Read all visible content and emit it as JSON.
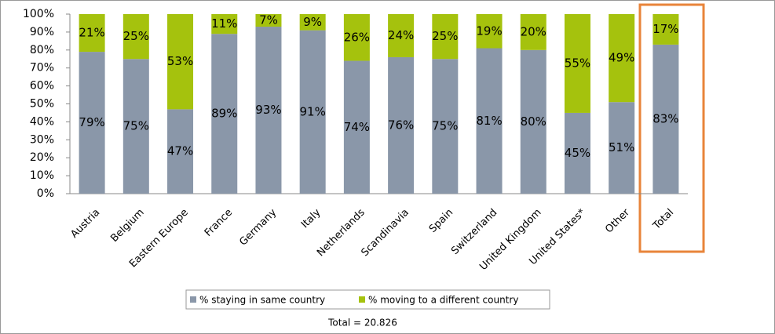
{
  "chart_data": {
    "type": "stacked-bar",
    "categories": [
      "Austria",
      "Belgium",
      "Eastern Europe",
      "France",
      "Germany",
      "Italy",
      "Netherlands",
      "Scandinavia",
      "Spain",
      "Switzerland",
      "United Kingdom",
      "United States*",
      "Other",
      "Total"
    ],
    "series": [
      {
        "name": "% staying in same country",
        "color": "#8a97a9",
        "values": [
          79,
          75,
          47,
          89,
          93,
          91,
          74,
          76,
          75,
          81,
          80,
          45,
          51,
          83
        ],
        "value_labels": [
          "79%",
          "75%",
          "47%",
          "89%",
          "93%",
          "91%",
          "74%",
          "76%",
          "75%",
          "81%",
          "80%",
          "45%",
          "51%",
          "83%"
        ]
      },
      {
        "name": "% moving to a different country",
        "color": "#a5c20d",
        "values": [
          21,
          25,
          53,
          11,
          7,
          9,
          26,
          24,
          25,
          19,
          20,
          55,
          49,
          17
        ],
        "value_labels": [
          "21%",
          "25%",
          "53%",
          "11%",
          "7%",
          "9%",
          "26%",
          "24%",
          "25%",
          "19%",
          "20%",
          "55%",
          "49%",
          "17%"
        ]
      }
    ],
    "ylim": [
      0,
      100
    ],
    "yticks": [
      {
        "value": 0,
        "label": "0%"
      },
      {
        "value": 10,
        "label": "10%"
      },
      {
        "value": 20,
        "label": "20%"
      },
      {
        "value": 30,
        "label": "30%"
      },
      {
        "value": 40,
        "label": "40%"
      },
      {
        "value": 50,
        "label": "50%"
      },
      {
        "value": 60,
        "label": "60%"
      },
      {
        "value": 70,
        "label": "70%"
      },
      {
        "value": 80,
        "label": "80%"
      },
      {
        "value": 90,
        "label": "90%"
      },
      {
        "value": 100,
        "label": "100%"
      }
    ],
    "legend": "bottom",
    "footnote": "Total = 20.826"
  }
}
